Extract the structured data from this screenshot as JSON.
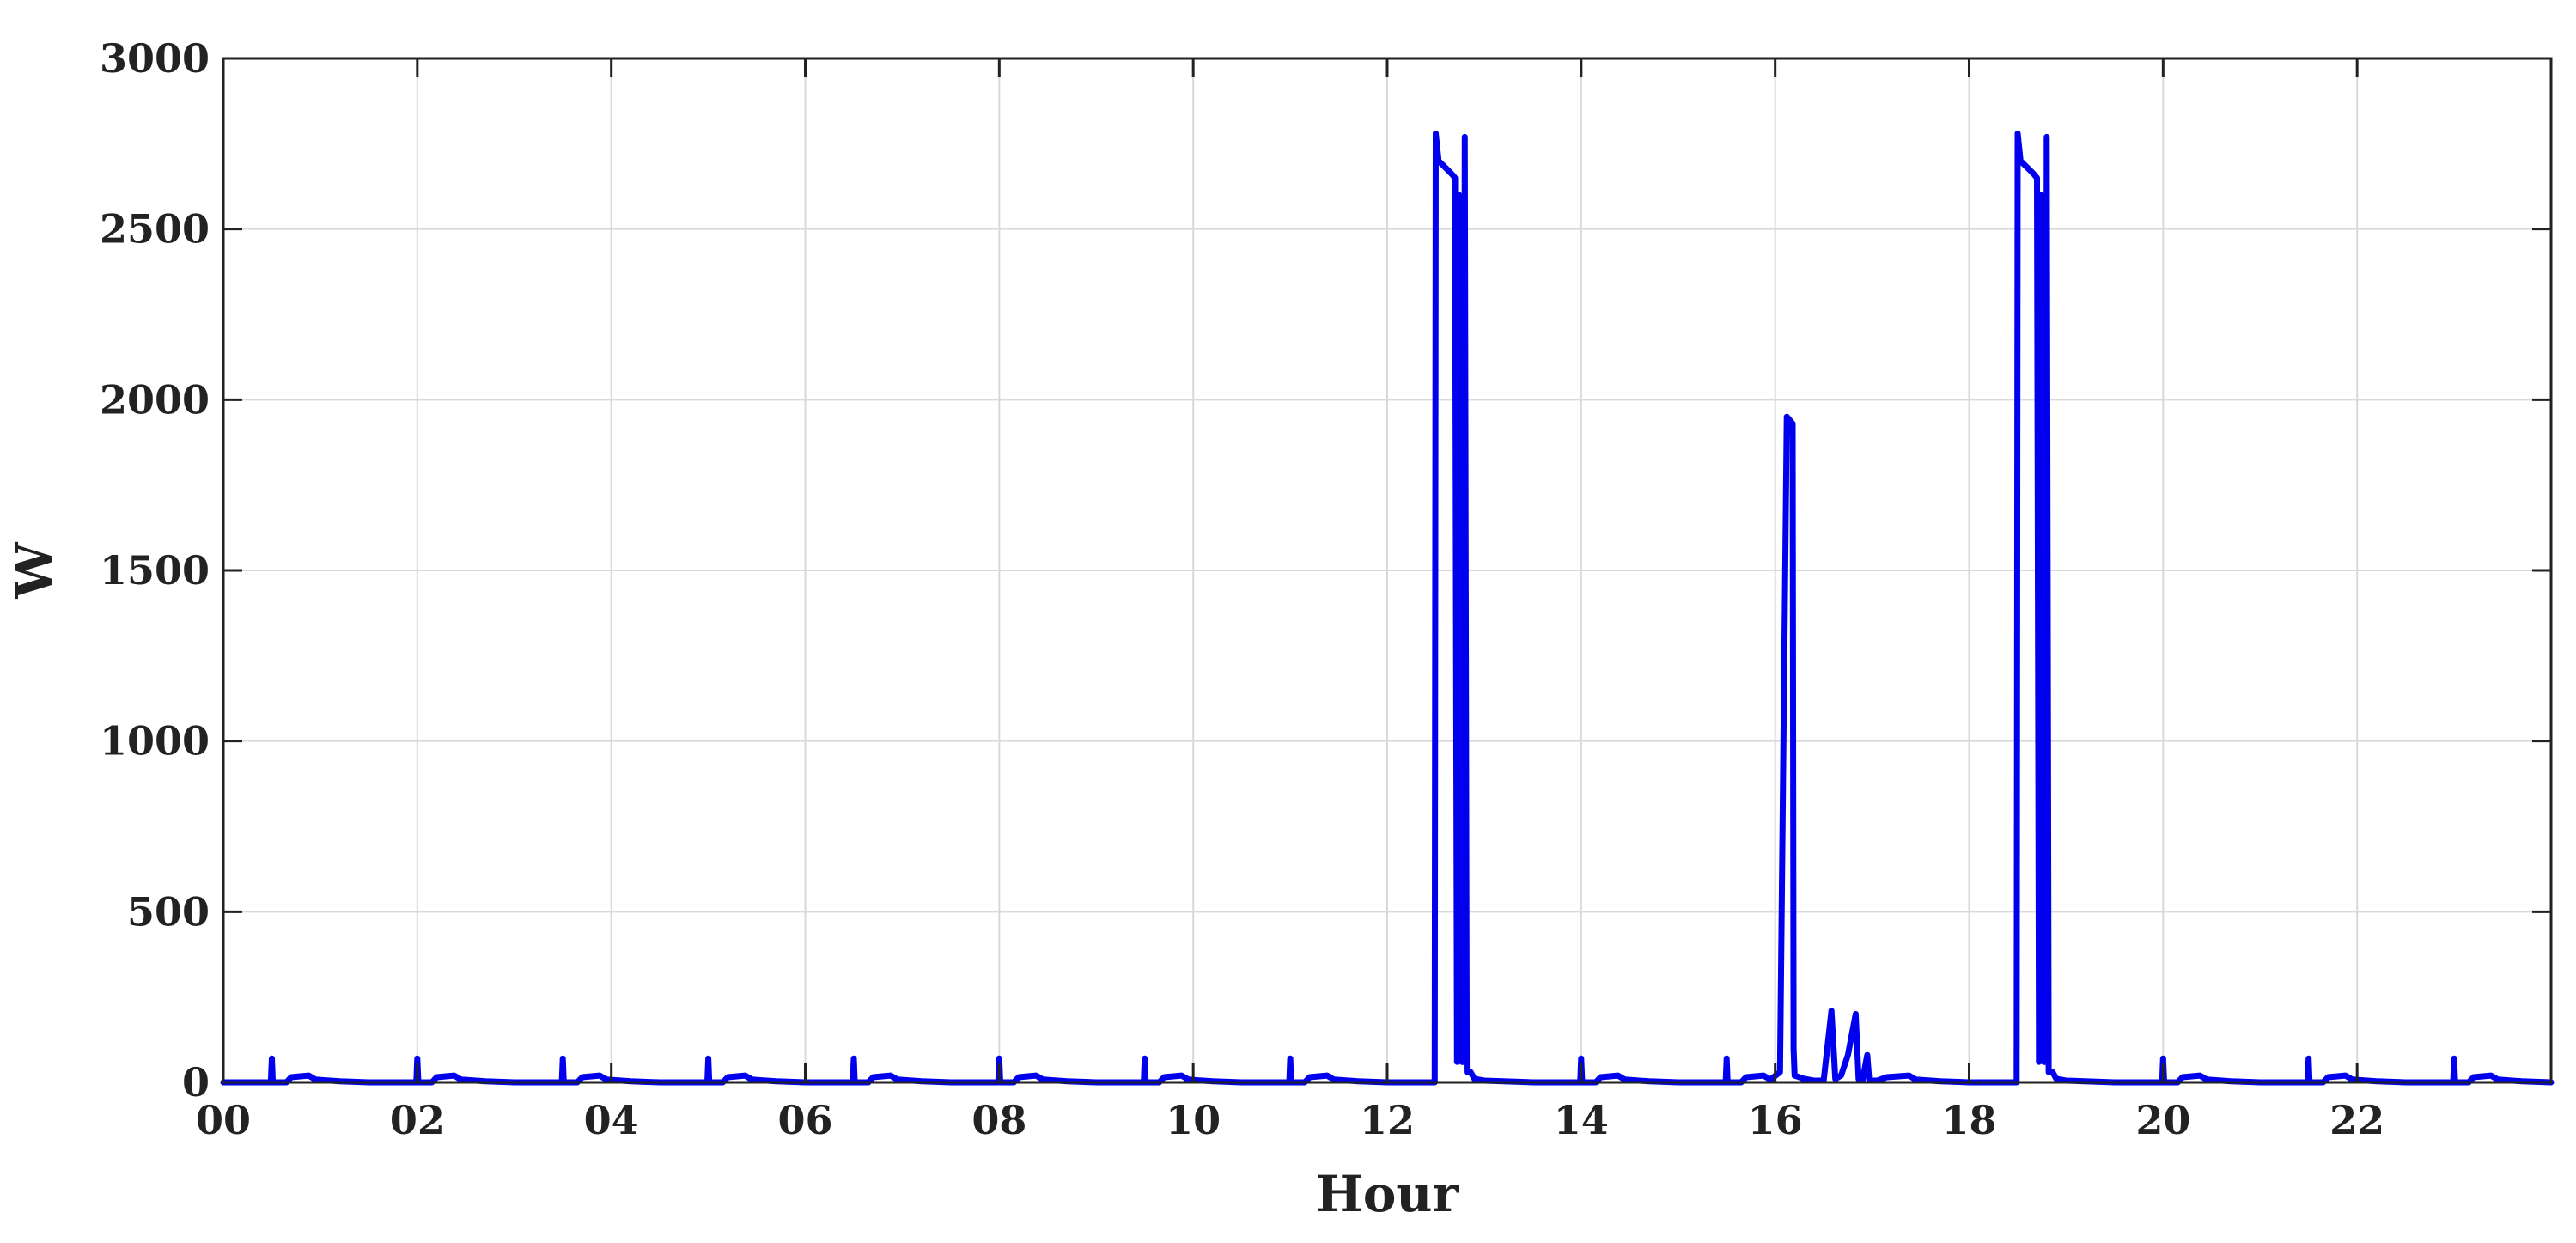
{
  "chart_data": {
    "type": "line",
    "title": "",
    "xlabel": "Hour",
    "ylabel": "W",
    "xlim": [
      0,
      24
    ],
    "ylim": [
      0,
      3000
    ],
    "grid": true,
    "legend": "none",
    "x_ticks": [
      0,
      2,
      4,
      6,
      8,
      10,
      12,
      14,
      16,
      18,
      20,
      22
    ],
    "x_tick_labels": [
      "00",
      "02",
      "04",
      "06",
      "08",
      "10",
      "12",
      "14",
      "16",
      "18",
      "20",
      "22"
    ],
    "y_ticks": [
      0,
      500,
      1000,
      1500,
      2000,
      2500,
      3000
    ],
    "y_tick_labels": [
      "0",
      "500",
      "1000",
      "1500",
      "2000",
      "2500",
      "3000"
    ],
    "series": [
      {
        "color": "#0000ee",
        "points": [
          [
            0.0,
            0
          ],
          [
            0.49,
            0
          ],
          [
            0.5,
            70
          ],
          [
            0.51,
            0
          ],
          [
            0.65,
            0
          ],
          [
            0.7,
            15
          ],
          [
            0.88,
            20
          ],
          [
            0.95,
            8
          ],
          [
            1.2,
            3
          ],
          [
            1.5,
            0
          ],
          [
            1.99,
            0
          ],
          [
            2.0,
            70
          ],
          [
            2.01,
            0
          ],
          [
            2.15,
            0
          ],
          [
            2.2,
            15
          ],
          [
            2.38,
            20
          ],
          [
            2.45,
            8
          ],
          [
            2.7,
            3
          ],
          [
            3.0,
            0
          ],
          [
            3.49,
            0
          ],
          [
            3.5,
            70
          ],
          [
            3.51,
            0
          ],
          [
            3.65,
            0
          ],
          [
            3.7,
            15
          ],
          [
            3.88,
            20
          ],
          [
            3.95,
            8
          ],
          [
            4.2,
            3
          ],
          [
            4.5,
            0
          ],
          [
            4.99,
            0
          ],
          [
            5.0,
            70
          ],
          [
            5.01,
            0
          ],
          [
            5.15,
            0
          ],
          [
            5.2,
            15
          ],
          [
            5.38,
            20
          ],
          [
            5.45,
            8
          ],
          [
            5.7,
            3
          ],
          [
            6.0,
            0
          ],
          [
            6.49,
            0
          ],
          [
            6.5,
            70
          ],
          [
            6.51,
            0
          ],
          [
            6.65,
            0
          ],
          [
            6.7,
            15
          ],
          [
            6.88,
            20
          ],
          [
            6.95,
            8
          ],
          [
            7.2,
            3
          ],
          [
            7.5,
            0
          ],
          [
            7.99,
            0
          ],
          [
            8.0,
            70
          ],
          [
            8.01,
            0
          ],
          [
            8.15,
            0
          ],
          [
            8.2,
            15
          ],
          [
            8.38,
            20
          ],
          [
            8.45,
            8
          ],
          [
            8.7,
            3
          ],
          [
            9.0,
            0
          ],
          [
            9.49,
            0
          ],
          [
            9.5,
            70
          ],
          [
            9.51,
            0
          ],
          [
            9.65,
            0
          ],
          [
            9.7,
            15
          ],
          [
            9.88,
            20
          ],
          [
            9.95,
            8
          ],
          [
            10.2,
            3
          ],
          [
            10.5,
            0
          ],
          [
            10.99,
            0
          ],
          [
            11.0,
            70
          ],
          [
            11.01,
            0
          ],
          [
            11.15,
            0
          ],
          [
            11.2,
            15
          ],
          [
            11.38,
            20
          ],
          [
            11.45,
            8
          ],
          [
            11.7,
            3
          ],
          [
            12.0,
            0
          ],
          [
            12.49,
            0
          ],
          [
            12.5,
            2780
          ],
          [
            12.53,
            2700
          ],
          [
            12.6,
            2680
          ],
          [
            12.67,
            2660
          ],
          [
            12.7,
            2650
          ],
          [
            12.72,
            60
          ],
          [
            12.74,
            2600
          ],
          [
            12.76,
            2200
          ],
          [
            12.77,
            60
          ],
          [
            12.79,
            60
          ],
          [
            12.8,
            2770
          ],
          [
            12.82,
            30
          ],
          [
            12.86,
            30
          ],
          [
            12.9,
            10
          ],
          [
            13.0,
            5
          ],
          [
            13.5,
            0
          ],
          [
            13.99,
            0
          ],
          [
            14.0,
            70
          ],
          [
            14.01,
            0
          ],
          [
            14.15,
            0
          ],
          [
            14.2,
            15
          ],
          [
            14.38,
            20
          ],
          [
            14.45,
            8
          ],
          [
            14.7,
            3
          ],
          [
            15.0,
            0
          ],
          [
            15.49,
            0
          ],
          [
            15.5,
            70
          ],
          [
            15.51,
            0
          ],
          [
            15.65,
            0
          ],
          [
            15.7,
            15
          ],
          [
            15.88,
            20
          ],
          [
            15.95,
            8
          ],
          [
            16.05,
            30
          ],
          [
            16.12,
            1950
          ],
          [
            16.18,
            1930
          ],
          [
            16.19,
            100
          ],
          [
            16.2,
            20
          ],
          [
            16.3,
            10
          ],
          [
            16.4,
            5
          ],
          [
            16.5,
            5
          ],
          [
            16.58,
            210
          ],
          [
            16.62,
            10
          ],
          [
            16.68,
            20
          ],
          [
            16.75,
            80
          ],
          [
            16.83,
            200
          ],
          [
            16.86,
            10
          ],
          [
            16.9,
            5
          ],
          [
            16.95,
            80
          ],
          [
            16.97,
            5
          ],
          [
            17.05,
            5
          ],
          [
            17.15,
            15
          ],
          [
            17.38,
            20
          ],
          [
            17.45,
            8
          ],
          [
            17.7,
            3
          ],
          [
            18.0,
            0
          ],
          [
            18.49,
            0
          ],
          [
            18.5,
            2780
          ],
          [
            18.53,
            2700
          ],
          [
            18.6,
            2680
          ],
          [
            18.67,
            2660
          ],
          [
            18.7,
            2650
          ],
          [
            18.72,
            60
          ],
          [
            18.74,
            2600
          ],
          [
            18.76,
            1100
          ],
          [
            18.77,
            60
          ],
          [
            18.79,
            60
          ],
          [
            18.8,
            2770
          ],
          [
            18.82,
            30
          ],
          [
            18.86,
            30
          ],
          [
            18.9,
            10
          ],
          [
            19.0,
            5
          ],
          [
            19.5,
            0
          ],
          [
            19.99,
            0
          ],
          [
            20.0,
            70
          ],
          [
            20.01,
            0
          ],
          [
            20.15,
            0
          ],
          [
            20.2,
            15
          ],
          [
            20.38,
            20
          ],
          [
            20.45,
            8
          ],
          [
            20.7,
            3
          ],
          [
            21.0,
            0
          ],
          [
            21.49,
            0
          ],
          [
            21.5,
            70
          ],
          [
            21.51,
            0
          ],
          [
            21.65,
            0
          ],
          [
            21.7,
            15
          ],
          [
            21.88,
            20
          ],
          [
            21.95,
            8
          ],
          [
            22.2,
            3
          ],
          [
            22.5,
            0
          ],
          [
            22.99,
            0
          ],
          [
            23.0,
            70
          ],
          [
            23.01,
            0
          ],
          [
            23.15,
            0
          ],
          [
            23.2,
            15
          ],
          [
            23.38,
            20
          ],
          [
            23.45,
            8
          ],
          [
            23.7,
            3
          ],
          [
            24.0,
            0
          ]
        ]
      }
    ]
  }
}
